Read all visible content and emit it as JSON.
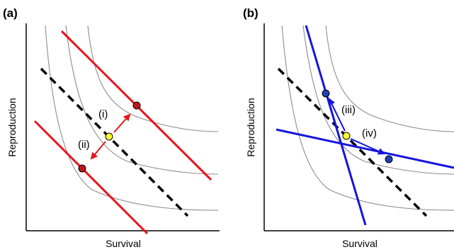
{
  "panels": [
    {
      "id": "a",
      "label": "(a)",
      "xlabel": "Survival",
      "ylabel": "Reproduction",
      "annotations": [
        "(i)",
        "(ii)"
      ]
    },
    {
      "id": "b",
      "label": "(b)",
      "xlabel": "Survival",
      "ylabel": "Reproduction",
      "annotations": [
        "(iii)",
        "(iv)"
      ]
    }
  ],
  "colors": {
    "curve": "#8c8c8c",
    "dashed": "#000000",
    "red": "#e8141b",
    "red_dot": "#c0161b",
    "blue": "#1414e0",
    "blue_dot": "#1f3fb4",
    "yellow": "#ffff33"
  }
}
